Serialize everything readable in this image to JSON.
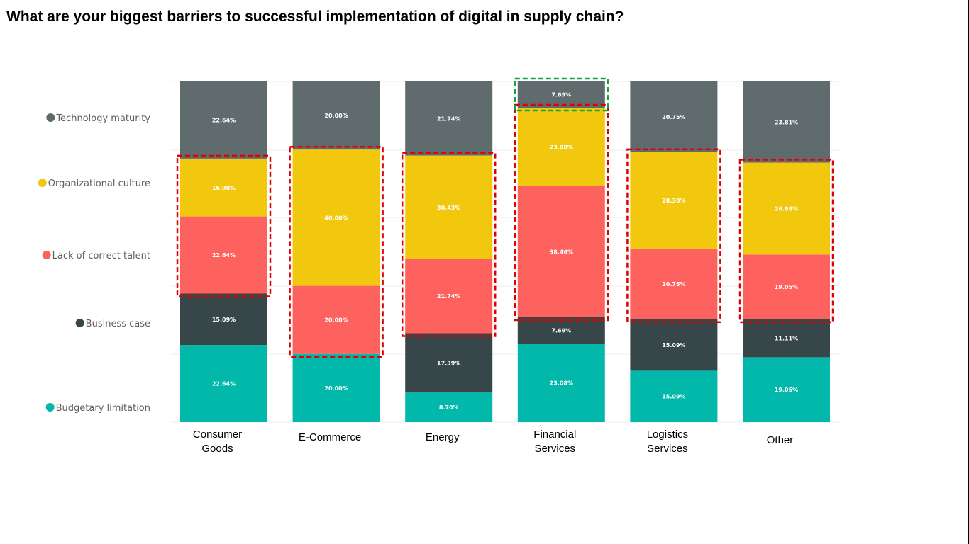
{
  "title": "What are your biggest barriers to successful implementation of digital in supply chain?",
  "chart_data": {
    "type": "bar",
    "stacked": "100%",
    "title": "What are your biggest barriers to successful implementation of digital in supply chain?",
    "xlabel": "",
    "ylabel": "",
    "ylim": [
      0,
      100
    ],
    "grid": true,
    "legend_position": "left",
    "categories": [
      [
        "Consumer",
        "Goods"
      ],
      [
        "E-Commerce"
      ],
      [
        "Energy"
      ],
      [
        "Financial",
        "Services"
      ],
      [
        "Logistics",
        "Services"
      ],
      [
        "Other"
      ]
    ],
    "series": [
      {
        "name": "Budgetary limitation",
        "color": "#01b8aa",
        "values": [
          22.64,
          20.0,
          8.7,
          23.08,
          15.09,
          19.05
        ],
        "labels": [
          "22.64%",
          "20.00%",
          "8.70%",
          "23.08%",
          "15.09%",
          "19.05%"
        ]
      },
      {
        "name": "Business case",
        "color": "#374649",
        "values": [
          15.09,
          0,
          17.39,
          7.69,
          15.09,
          11.11
        ],
        "labels": [
          "15.09%",
          "",
          "17.39%",
          "7.69%",
          "15.09%",
          "11.11%"
        ]
      },
      {
        "name": "Lack of correct talent",
        "color": "#fd625e",
        "values": [
          22.64,
          20.0,
          21.74,
          38.46,
          20.75,
          19.05
        ],
        "labels": [
          "22.64%",
          "20.00%",
          "21.74%",
          "38.46%",
          "20.75%",
          "19.05%"
        ]
      },
      {
        "name": "Organizational culture",
        "color": "#f2c80f",
        "values": [
          16.98,
          40.0,
          30.43,
          23.08,
          28.3,
          26.98
        ],
        "labels": [
          "16.98%",
          "40.00%",
          "30.43%",
          "23.08%",
          "28.30%",
          "26.98%"
        ]
      },
      {
        "name": "Technology maturity",
        "color": "#5f6b6d",
        "values": [
          22.64,
          20.0,
          21.74,
          7.69,
          20.75,
          23.81
        ],
        "labels": [
          "22.64%",
          "20.00%",
          "21.74%",
          "7.69%",
          "20.75%",
          "23.81%"
        ]
      }
    ],
    "legend_order_top_to_bottom": [
      "Technology maturity",
      "Organizational culture",
      "Lack of correct talent",
      "Business case",
      "Budgetary limitation"
    ],
    "annotations": [
      {
        "type": "dashed-box",
        "color": "#e00000",
        "category": "Consumer Goods",
        "covers": [
          "Organizational culture",
          "Lack of correct talent"
        ]
      },
      {
        "type": "dashed-box",
        "color": "#e00000",
        "category": "E-Commerce",
        "covers": [
          "Organizational culture",
          "Lack of correct talent"
        ]
      },
      {
        "type": "dashed-box",
        "color": "#e00000",
        "category": "Energy",
        "covers": [
          "Organizational culture",
          "Lack of correct talent"
        ]
      },
      {
        "type": "dashed-box",
        "color": "#e00000",
        "category": "Financial Services",
        "covers": [
          "Organizational culture",
          "Lack of correct talent"
        ]
      },
      {
        "type": "dashed-box",
        "color": "#e00000",
        "category": "Logistics Services",
        "covers": [
          "Organizational culture",
          "Lack of correct talent"
        ]
      },
      {
        "type": "dashed-box",
        "color": "#e00000",
        "category": "Other",
        "covers": [
          "Organizational culture",
          "Lack of correct talent"
        ]
      },
      {
        "type": "dashed-box",
        "color": "#13a538",
        "category": "Financial Services",
        "covers": [
          "Technology maturity"
        ]
      }
    ]
  }
}
